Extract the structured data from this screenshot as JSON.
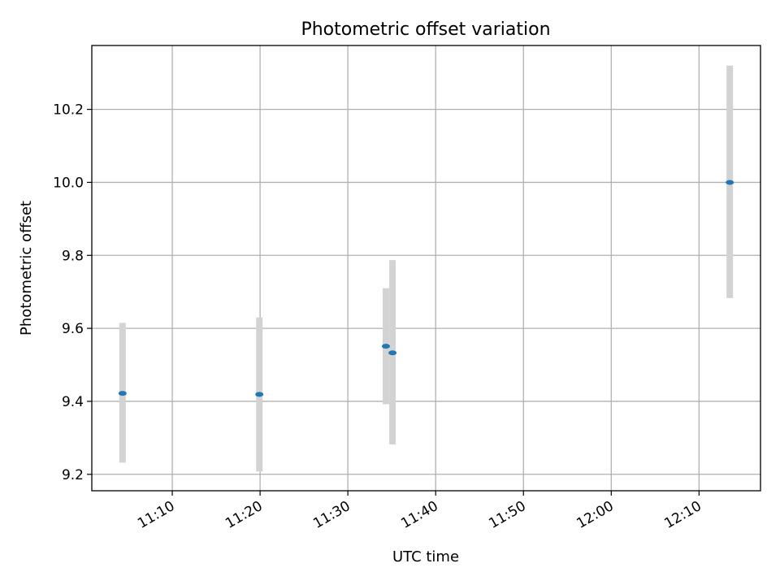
{
  "chart_data": {
    "type": "scatter",
    "title": "Photometric offset variation",
    "xlabel": "UTC time",
    "ylabel": "Photometric offset",
    "x_ticks": [
      "11:10",
      "11:20",
      "11:30",
      "11:40",
      "11:50",
      "12:00",
      "12:10"
    ],
    "y_ticks": [
      "9.2",
      "9.4",
      "9.6",
      "9.8",
      "10.0",
      "10.2"
    ],
    "xlim": [
      "11:00:50",
      "12:17:00"
    ],
    "ylim": [
      9.155,
      10.375
    ],
    "grid": true,
    "errorbar_color": "#d3d3d3",
    "marker_color": "#1f77b4",
    "points": [
      {
        "x": "11:04:20",
        "y": 9.422,
        "yerr_low": 9.232,
        "yerr_high": 9.615
      },
      {
        "x": "11:19:55",
        "y": 9.419,
        "yerr_low": 9.208,
        "yerr_high": 9.63
      },
      {
        "x": "11:34:20",
        "y": 9.551,
        "yerr_low": 9.392,
        "yerr_high": 9.71
      },
      {
        "x": "11:35:05",
        "y": 9.533,
        "yerr_low": 9.282,
        "yerr_high": 9.787
      },
      {
        "x": "12:13:30",
        "y": 10.0,
        "yerr_low": 9.683,
        "yerr_high": 10.32
      }
    ]
  }
}
